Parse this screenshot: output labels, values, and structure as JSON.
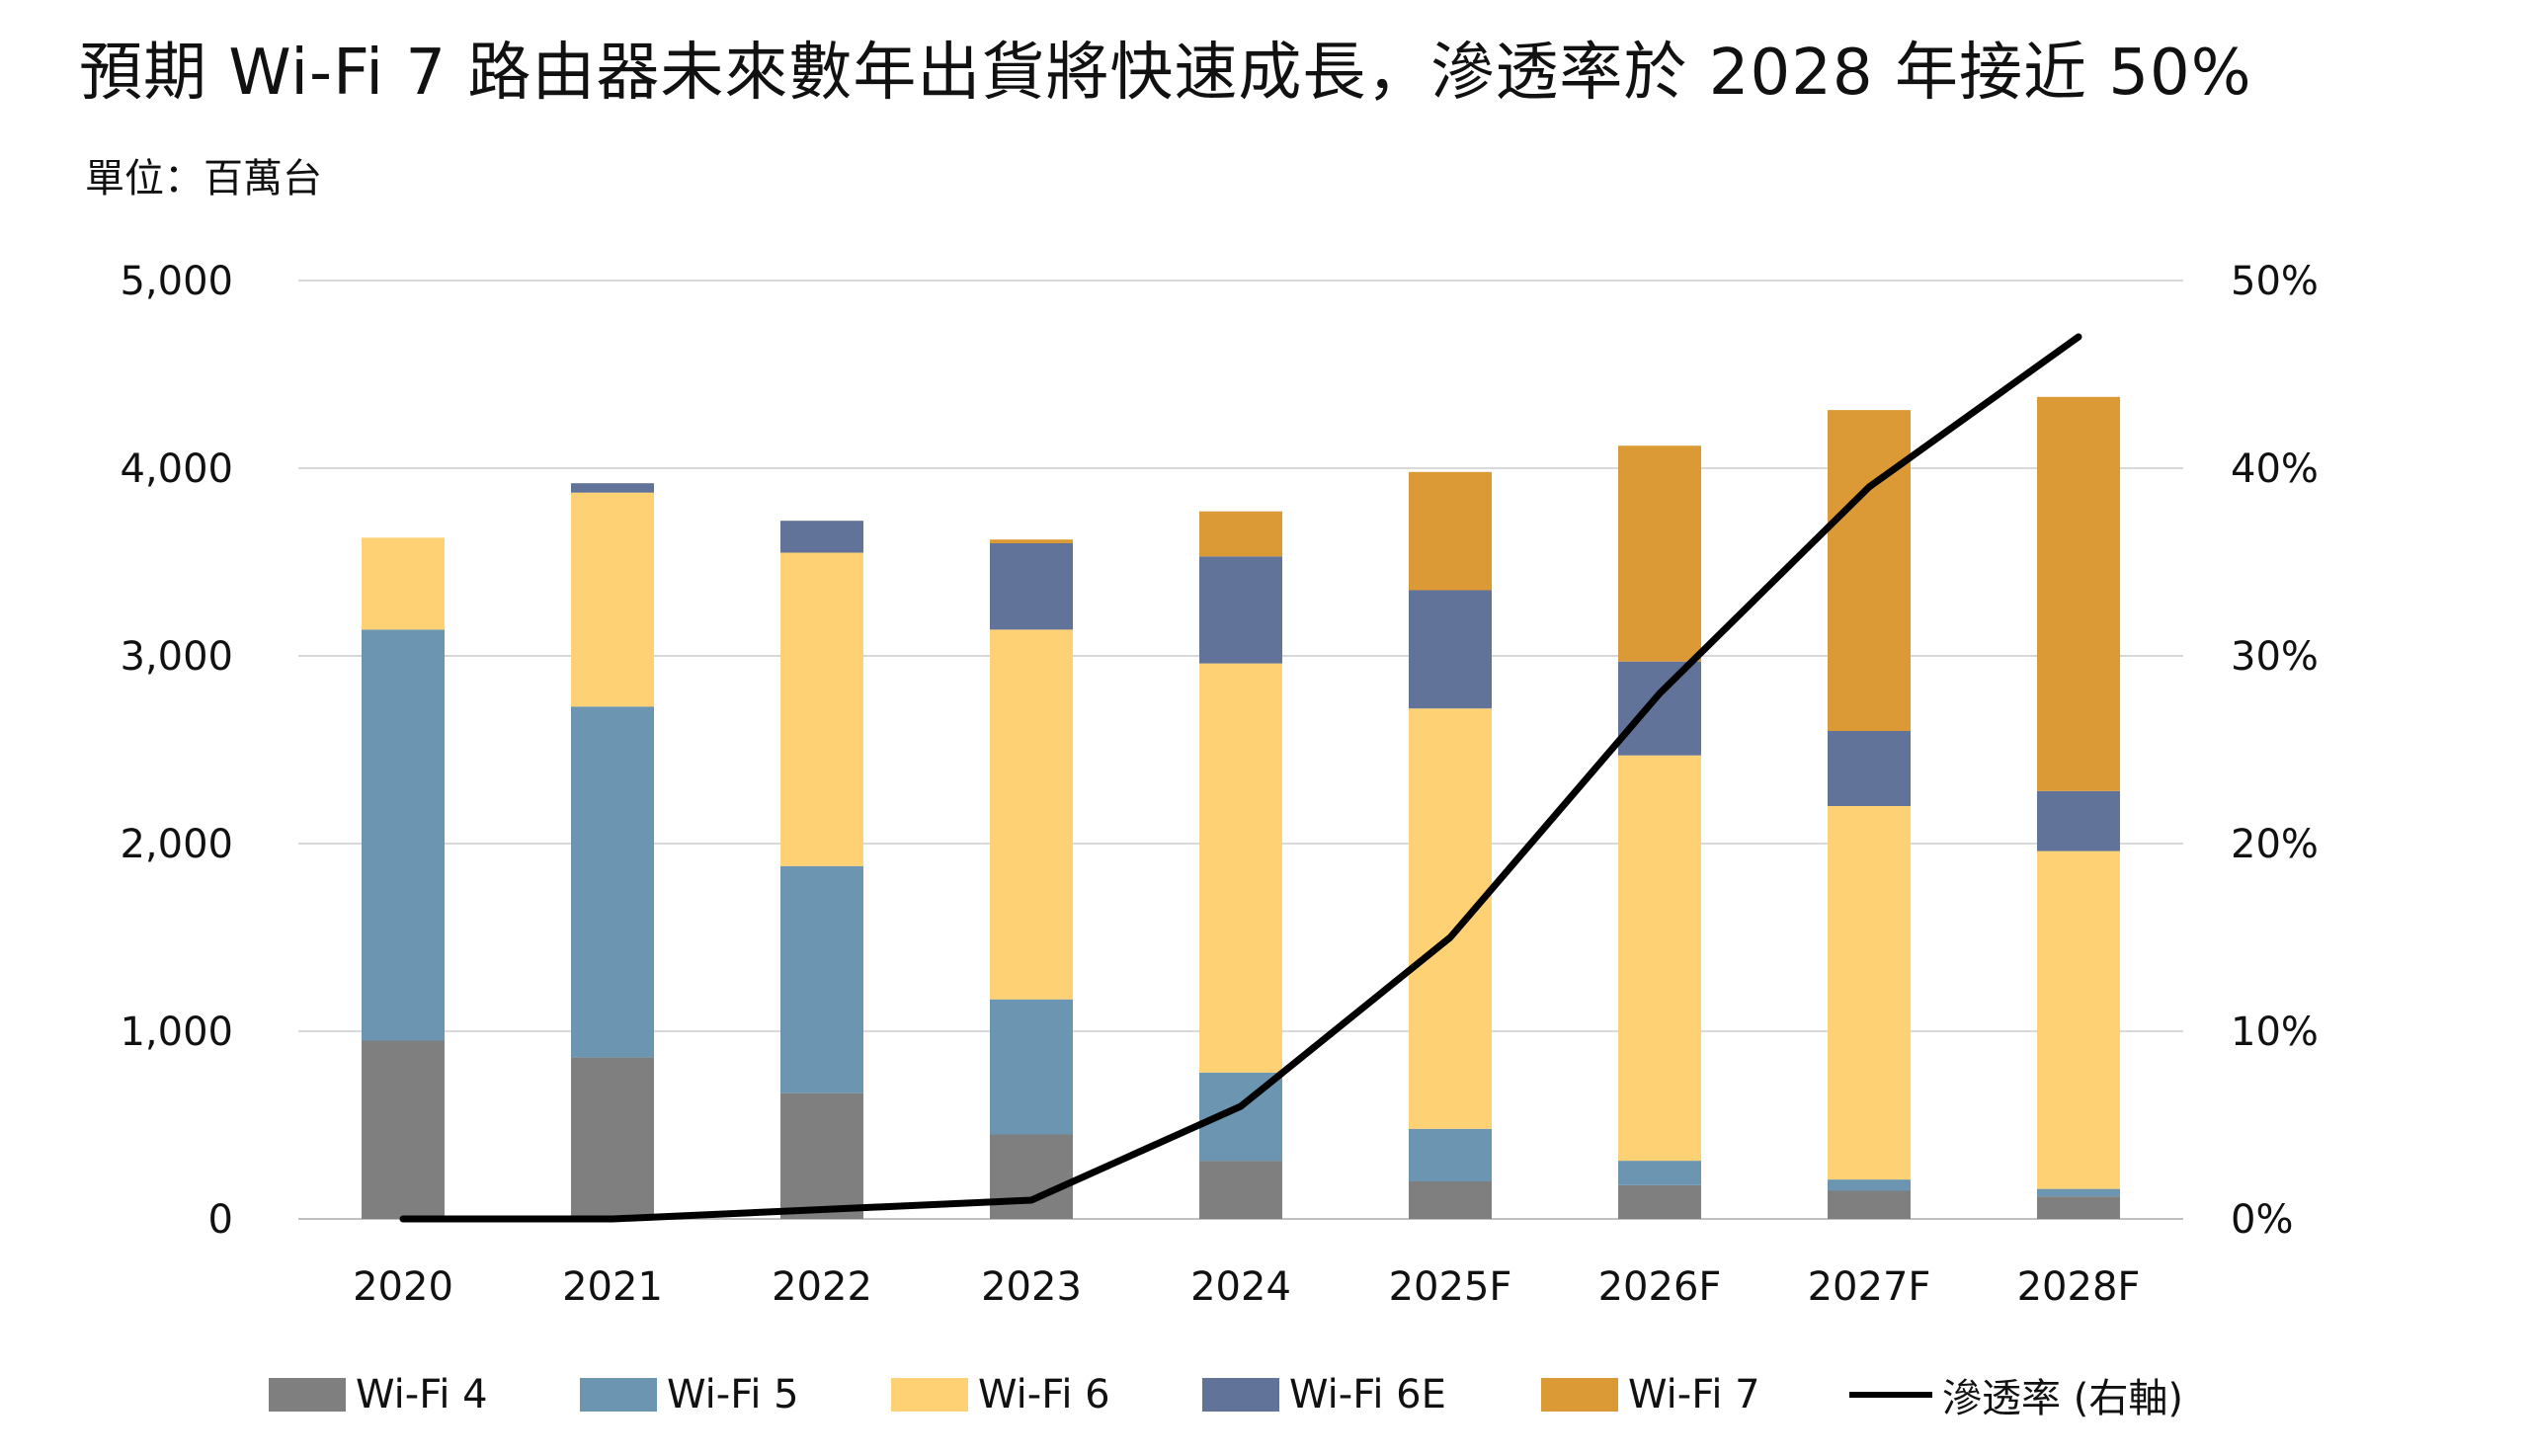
{
  "title": "預期 Wi-Fi 7 路由器未來數年出貨將快速成長，滲透率於 2028 年接近 50%",
  "unit_label": "單位：百萬台",
  "colors": {
    "wifi4": "#7f7f7f",
    "wifi5": "#6b95b0",
    "wifi6": "#fed175",
    "wifi6e": "#627399",
    "wifi7": "#dc9a36",
    "penetration": "#000000",
    "grid": "#d9d9d9"
  },
  "chart_data": {
    "type": "bar",
    "stacked": true,
    "categories": [
      "2020",
      "2021",
      "2022",
      "2023",
      "2024",
      "2025F",
      "2026F",
      "2027F",
      "2028F"
    ],
    "series": [
      {
        "name": "Wi-Fi 4",
        "values": [
          950,
          860,
          670,
          450,
          310,
          200,
          180,
          150,
          120
        ]
      },
      {
        "name": "Wi-Fi 5",
        "values": [
          2190,
          1870,
          1210,
          720,
          470,
          280,
          130,
          60,
          40
        ]
      },
      {
        "name": "Wi-Fi 6",
        "values": [
          490,
          1140,
          1670,
          1970,
          2180,
          2240,
          2160,
          1990,
          1800
        ]
      },
      {
        "name": "Wi-Fi 6E",
        "values": [
          0,
          50,
          170,
          460,
          570,
          630,
          500,
          400,
          320
        ]
      },
      {
        "name": "Wi-Fi 7",
        "values": [
          0,
          0,
          0,
          20,
          240,
          630,
          1150,
          1710,
          2100
        ]
      }
    ],
    "line_series": {
      "name": "滲透率 (右軸)",
      "values": [
        0,
        0,
        0.5,
        1,
        6,
        15,
        28,
        39,
        47
      ],
      "unit": "%"
    },
    "ylim": [
      0,
      5000
    ],
    "y2lim": [
      0,
      50
    ],
    "yticks": [
      "0",
      "1,000",
      "2,000",
      "3,000",
      "4,000",
      "5,000"
    ],
    "y2ticks": [
      "0%",
      "10%",
      "20%",
      "30%",
      "40%",
      "50%"
    ],
    "grid": true,
    "legend_position": "bottom"
  }
}
